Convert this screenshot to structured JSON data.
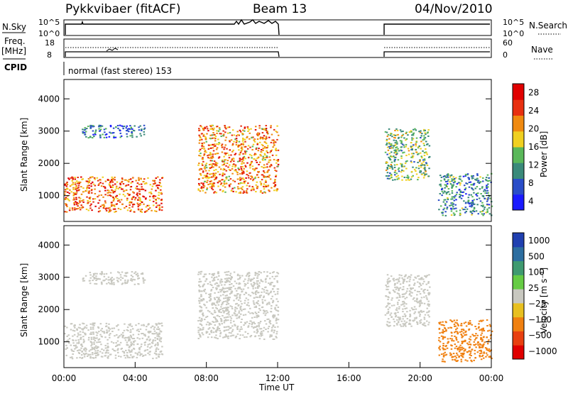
{
  "header": {
    "station": "Pykkvibaer (fitACF)",
    "beam": "Beam 13",
    "date": "04/Nov/2010"
  },
  "left_labels": {
    "nsky": "N.Sky",
    "freq": "Freq.",
    "freq_unit": "[MHz]",
    "cpid": "CPID"
  },
  "right_labels": {
    "nsearch": "N.Search",
    "nave": "Nave"
  },
  "cpid_text": "normal (fast stereo) 153",
  "time_ticks": [
    "00:00",
    "04:00",
    "08:00",
    "12:00",
    "16:00",
    "20:00",
    "00:00"
  ],
  "time_label": "Time UT",
  "nsky_axis_ticks": [
    "10^5",
    "10^0"
  ],
  "nsearch_axis_ticks": [
    "10^5",
    "10^0"
  ],
  "freq_axis_ticks": [
    "18",
    "8"
  ],
  "nave_axis_ticks": [
    "60",
    "0"
  ],
  "range_ticks": [
    "1000",
    "2000",
    "3000",
    "4000"
  ],
  "range_label": "Slant Range [km]",
  "power_colorbar": {
    "label": "Power [dB]",
    "ticks": [
      "4",
      "8",
      "12",
      "16",
      "20",
      "24",
      "28"
    ],
    "colors": [
      "#1a1aff",
      "#2a4dc8",
      "#3a8a7a",
      "#5ab85a",
      "#f0d020",
      "#f08a10",
      "#e83010",
      "#e00000"
    ]
  },
  "velocity_colorbar": {
    "label": "Velocity [m s⁻¹]",
    "ticks": [
      "1000",
      "500",
      "100",
      "25",
      "−25",
      "−100",
      "−500",
      "−1000"
    ],
    "colors": [
      "#2040b0",
      "#2d6ea0",
      "#3f9a70",
      "#66cc44",
      "#c8c8c0",
      "#e8c020",
      "#f08010",
      "#e84010",
      "#e00000"
    ]
  },
  "chart_data": [
    {
      "type": "line",
      "title": "N.Sky / N.Search",
      "x": [
        "00:00",
        "12:00",
        "18:00",
        "24:00"
      ],
      "series": [
        {
          "name": "N.Sky",
          "segments": [
            [
              0,
              12
            ],
            [
              18,
              24
            ]
          ],
          "level": "10^5"
        }
      ]
    },
    {
      "type": "line",
      "title": "Freq. / Nave",
      "series": [
        {
          "name": "Freq.",
          "segments": [
            [
              0,
              12
            ],
            [
              18,
              24
            ]
          ],
          "values_mhz": [
            10.5,
            11
          ]
        },
        {
          "name": "Nave",
          "segments": [
            [
              0,
              12
            ],
            [
              18,
              24
            ]
          ],
          "values": [
            44,
            44
          ]
        }
      ]
    },
    {
      "type": "heatmap",
      "title": "Power [dB]",
      "xlabel": "Time UT",
      "ylabel": "Slant Range [km]",
      "xlim": [
        0,
        24
      ],
      "ylim": [
        200,
        4600
      ],
      "echo_regions": [
        {
          "t0": 0.0,
          "t1": 5.5,
          "r0": 500,
          "r1": 1600,
          "value": 24
        },
        {
          "t0": 1.0,
          "t1": 4.5,
          "r0": 2800,
          "r1": 3200,
          "value": 8
        },
        {
          "t0": 7.5,
          "t1": 12.0,
          "r0": 1100,
          "r1": 3200,
          "value": 22
        },
        {
          "t0": 18.0,
          "t1": 20.5,
          "r0": 1500,
          "r1": 3100,
          "value": 14
        },
        {
          "t0": 21.0,
          "t1": 24.0,
          "r0": 400,
          "r1": 1700,
          "value": 10
        }
      ]
    },
    {
      "type": "heatmap",
      "title": "Velocity [m s⁻¹]",
      "xlabel": "Time UT",
      "ylabel": "Slant Range [km]",
      "xlim": [
        0,
        24
      ],
      "ylim": [
        200,
        4600
      ],
      "echo_regions": [
        {
          "t0": 0.0,
          "t1": 5.5,
          "r0": 500,
          "r1": 1600,
          "value": 0
        },
        {
          "t0": 1.0,
          "t1": 4.5,
          "r0": 2800,
          "r1": 3200,
          "value": 0
        },
        {
          "t0": 7.5,
          "t1": 12.0,
          "r0": 1100,
          "r1": 3200,
          "value": 0
        },
        {
          "t0": 18.0,
          "t1": 20.5,
          "r0": 1500,
          "r1": 3100,
          "value": 0
        },
        {
          "t0": 21.0,
          "t1": 24.0,
          "r0": 400,
          "r1": 1700,
          "value": -200
        }
      ]
    }
  ]
}
